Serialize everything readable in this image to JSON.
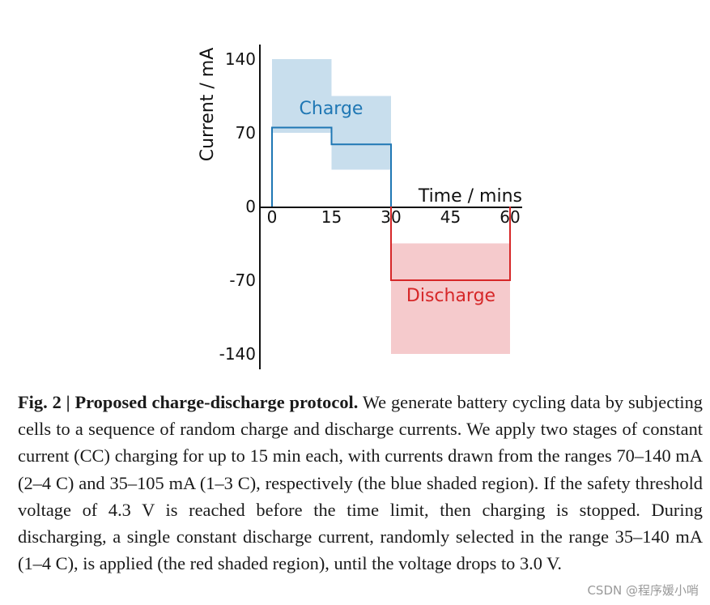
{
  "chart_data": {
    "type": "line",
    "xlabel": "Time / mins",
    "ylabel": "Current / mA",
    "xlim": [
      0,
      60
    ],
    "ylim": [
      -140,
      140
    ],
    "xticks": [
      "0",
      "15",
      "30",
      "45",
      "60"
    ],
    "yticks": [
      "140",
      "70",
      "0",
      "-70",
      "-140"
    ],
    "series": [
      {
        "name": "Charge",
        "color": "#1f77b4",
        "x": [
          0,
          0,
          15,
          15,
          30,
          30
        ],
        "y": [
          0,
          75,
          75,
          59,
          59,
          0
        ]
      },
      {
        "name": "Discharge",
        "color": "#d62728",
        "x": [
          30,
          30,
          60,
          60
        ],
        "y": [
          0,
          -70,
          -70,
          0
        ]
      }
    ],
    "shaded_regions": [
      {
        "name": "charge-stage-1",
        "x_range": [
          0,
          15
        ],
        "y_range": [
          70,
          140
        ],
        "color": "#b5d3e7"
      },
      {
        "name": "charge-stage-2",
        "x_range": [
          15,
          30
        ],
        "y_range": [
          35,
          105
        ],
        "color": "#b5d3e7"
      },
      {
        "name": "discharge",
        "x_range": [
          30,
          60
        ],
        "y_range": [
          -140,
          -35
        ],
        "color": "#f2b8bb"
      }
    ],
    "annotations": [
      {
        "text": "Charge",
        "color": "#1f77b4"
      },
      {
        "text": "Discharge",
        "color": "#d62728"
      }
    ]
  },
  "caption": {
    "fig_label": "Fig. 2 | Proposed charge-discharge protocol.",
    "text": " We generate battery cycling data by subjecting cells to a sequence of random charge and discharge currents. We apply two stages of constant current (CC) charging for up to 15 min each, with currents drawn from the ranges 70–140 mA (2–4 C) and 35–105 mA (1–3 C), respectively (the blue shaded region). If the safety threshold voltage of 4.3 V is reached before the time limit, then charging is stopped. During discharging, a single constant discharge current, randomly selected in the range 35–140 mA (1–4 C), is applied (the red shaded region), until the voltage drops to 3.0 V."
  },
  "watermark": "CSDN @程序媛小哨"
}
